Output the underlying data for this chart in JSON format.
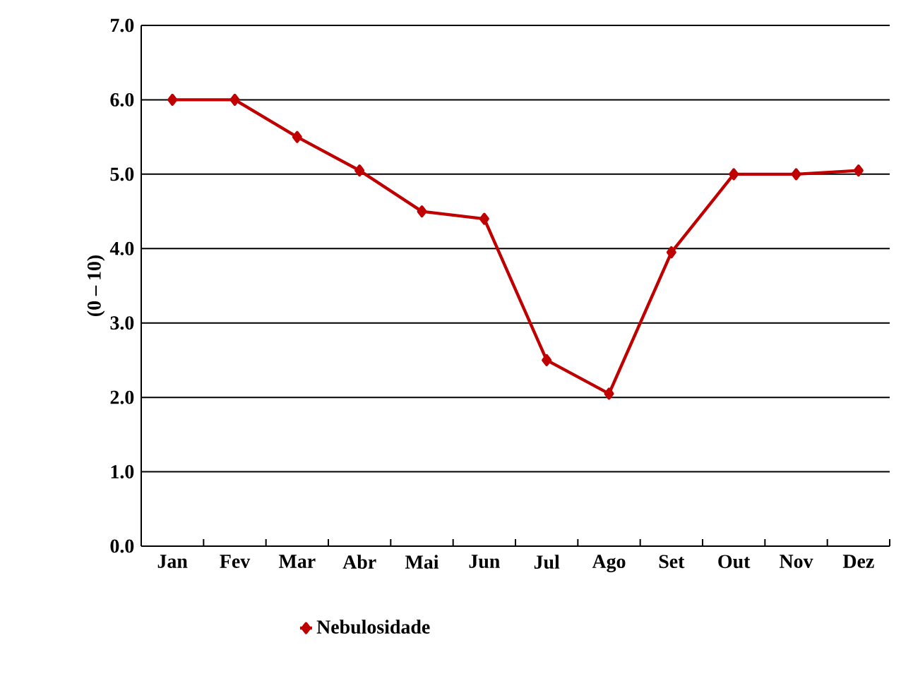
{
  "chart_data": {
    "type": "line",
    "ylabel": "(0 – 10)",
    "categories": [
      "Jan",
      "Fev",
      "Mar",
      "Abr",
      "Mai",
      "Jun",
      "Jul",
      "Ago",
      "Set",
      "Out",
      "Nov",
      "Dez"
    ],
    "series": [
      {
        "name": "Nebulosidade",
        "color": "#c00000",
        "values": [
          6.0,
          6.0,
          5.5,
          5.05,
          4.5,
          4.4,
          2.5,
          2.05,
          3.95,
          5.0,
          5.0,
          5.05
        ]
      }
    ],
    "ylim": [
      0,
      7
    ],
    "yticks": [
      {
        "value": 0,
        "label": "0.0"
      },
      {
        "value": 1,
        "label": "1.0"
      },
      {
        "value": 2,
        "label": "2.0"
      },
      {
        "value": 3,
        "label": "3.0"
      },
      {
        "value": 4,
        "label": "4.0"
      },
      {
        "value": 5,
        "label": "5.0"
      },
      {
        "value": 6,
        "label": "6.0"
      },
      {
        "value": 7,
        "label": "7.0"
      }
    ],
    "grid": "y",
    "legend": "bottom",
    "marker": "diamond",
    "line_style": "solid"
  }
}
